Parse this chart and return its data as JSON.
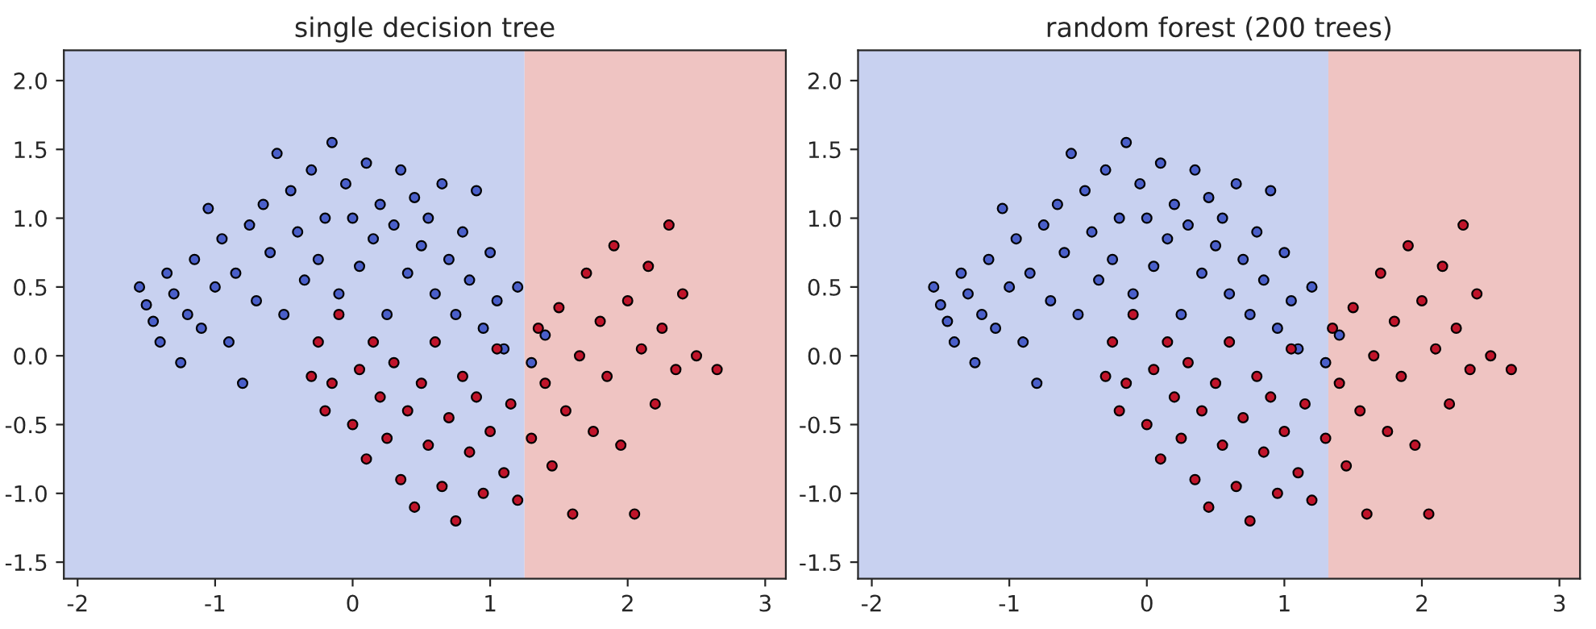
{
  "chart_data": [
    {
      "type": "scatter",
      "title": "single decision tree",
      "xlim": [
        -2.1,
        3.15
      ],
      "ylim": [
        -1.62,
        2.22
      ],
      "xticks": [
        -2,
        -1,
        0,
        1,
        2,
        3
      ],
      "yticks": [
        {
          "value": -1.5,
          "label": "-1.5"
        },
        {
          "value": -1,
          "label": "-1.0"
        },
        {
          "value": -0.5,
          "label": "-0.5"
        },
        {
          "value": 0,
          "label": "0.0"
        },
        {
          "value": 0.5,
          "label": "0.5"
        },
        {
          "value": 1,
          "label": "1.0"
        },
        {
          "value": 1.5,
          "label": "1.5"
        },
        {
          "value": 2,
          "label": "2.0"
        }
      ],
      "marker": "circle",
      "grid": false,
      "bands": [
        {
          "axis": "x",
          "from": -2.1,
          "to": 1.25,
          "color": "#c8d1f0"
        },
        {
          "axis": "x",
          "from": 1.25,
          "to": 3.15,
          "color": "#efc4c2"
        }
      ],
      "series": [
        {
          "color": "#4a5fc9",
          "x": [
            -1.55,
            -1.5,
            -1.45,
            -1.4,
            -1.35,
            -1.3,
            -1.25,
            -1.2,
            -1.15,
            -1.1,
            -1.05,
            -1.0,
            -0.95,
            -0.9,
            -0.85,
            -0.8,
            -0.75,
            -0.7,
            -0.65,
            -0.6,
            -0.55,
            -0.5,
            -0.45,
            -0.4,
            -0.35,
            -0.3,
            -0.25,
            -0.2,
            -0.15,
            -0.1,
            -0.05,
            0.0,
            0.05,
            0.1,
            0.15,
            0.2,
            0.25,
            0.3,
            0.35,
            0.4,
            0.45,
            0.5,
            0.55,
            0.6,
            0.65,
            0.7,
            0.75,
            0.8,
            0.85,
            0.9,
            0.95,
            1.0,
            1.05,
            1.1,
            1.2,
            1.3,
            1.4
          ],
          "values": [
            0.5,
            0.37,
            0.25,
            0.1,
            0.6,
            0.45,
            -0.05,
            0.3,
            0.7,
            0.2,
            1.07,
            0.5,
            0.85,
            0.1,
            0.6,
            -0.2,
            0.95,
            0.4,
            1.1,
            0.75,
            1.47,
            0.3,
            1.2,
            0.9,
            0.55,
            1.35,
            0.7,
            1.0,
            1.55,
            0.45,
            1.25,
            1.0,
            0.65,
            1.4,
            0.85,
            1.1,
            0.3,
            0.95,
            1.35,
            0.6,
            1.15,
            0.8,
            1.0,
            0.45,
            1.25,
            0.7,
            0.3,
            0.9,
            0.55,
            1.2,
            0.2,
            0.75,
            0.4,
            0.05,
            0.5,
            -0.05,
            0.15
          ]
        },
        {
          "color": "#c0142a",
          "x": [
            -0.3,
            -0.25,
            -0.2,
            -0.15,
            -0.1,
            0.0,
            0.05,
            0.1,
            0.15,
            0.2,
            0.25,
            0.3,
            0.35,
            0.4,
            0.45,
            0.5,
            0.55,
            0.6,
            0.65,
            0.7,
            0.75,
            0.8,
            0.85,
            0.9,
            0.95,
            1.0,
            1.05,
            1.1,
            1.15,
            1.2,
            1.3,
            1.35,
            1.4,
            1.45,
            1.5,
            1.55,
            1.6,
            1.65,
            1.7,
            1.75,
            1.8,
            1.85,
            1.9,
            1.95,
            2.0,
            2.05,
            2.1,
            2.15,
            2.2,
            2.25,
            2.3,
            2.35,
            2.4,
            2.5,
            2.65
          ],
          "values": [
            -0.15,
            0.1,
            -0.4,
            -0.2,
            0.3,
            -0.5,
            -0.1,
            -0.75,
            0.1,
            -0.3,
            -0.6,
            -0.05,
            -0.9,
            -0.4,
            -1.1,
            -0.2,
            -0.65,
            0.1,
            -0.95,
            -0.45,
            -1.2,
            -0.15,
            -0.7,
            -0.3,
            -1.0,
            -0.55,
            0.05,
            -0.85,
            -0.35,
            -1.05,
            -0.6,
            0.2,
            -0.2,
            -0.8,
            0.35,
            -0.4,
            -1.15,
            0.0,
            0.6,
            -0.55,
            0.25,
            -0.15,
            0.8,
            -0.65,
            0.4,
            -1.15,
            0.05,
            0.65,
            -0.35,
            0.2,
            0.95,
            -0.1,
            0.45,
            0.0,
            -0.1
          ]
        }
      ]
    },
    {
      "type": "scatter",
      "title": "random forest (200 trees)",
      "xlim": [
        -2.1,
        3.15
      ],
      "ylim": [
        -1.62,
        2.22
      ],
      "xticks": [
        -2,
        -1,
        0,
        1,
        2,
        3
      ],
      "yticks": [
        {
          "value": -1.5,
          "label": "-1.5"
        },
        {
          "value": -1,
          "label": "-1.0"
        },
        {
          "value": -0.5,
          "label": "-0.5"
        },
        {
          "value": 0,
          "label": "0.0"
        },
        {
          "value": 0.5,
          "label": "0.5"
        },
        {
          "value": 1,
          "label": "1.0"
        },
        {
          "value": 1.5,
          "label": "1.5"
        },
        {
          "value": 2,
          "label": "2.0"
        }
      ],
      "marker": "circle",
      "grid": false,
      "bands": [
        {
          "axis": "x",
          "from": -2.1,
          "to": 1.32,
          "color": "#c8d1f0"
        },
        {
          "axis": "x",
          "from": 1.32,
          "to": 3.15,
          "color": "#efc4c2"
        }
      ],
      "series": [
        {
          "color": "#4a5fc9",
          "x": [
            -1.55,
            -1.5,
            -1.45,
            -1.4,
            -1.35,
            -1.3,
            -1.25,
            -1.2,
            -1.15,
            -1.1,
            -1.05,
            -1.0,
            -0.95,
            -0.9,
            -0.85,
            -0.8,
            -0.75,
            -0.7,
            -0.65,
            -0.6,
            -0.55,
            -0.5,
            -0.45,
            -0.4,
            -0.35,
            -0.3,
            -0.25,
            -0.2,
            -0.15,
            -0.1,
            -0.05,
            0.0,
            0.05,
            0.1,
            0.15,
            0.2,
            0.25,
            0.3,
            0.35,
            0.4,
            0.45,
            0.5,
            0.55,
            0.6,
            0.65,
            0.7,
            0.75,
            0.8,
            0.85,
            0.9,
            0.95,
            1.0,
            1.05,
            1.1,
            1.2,
            1.3,
            1.4
          ],
          "values": [
            0.5,
            0.37,
            0.25,
            0.1,
            0.6,
            0.45,
            -0.05,
            0.3,
            0.7,
            0.2,
            1.07,
            0.5,
            0.85,
            0.1,
            0.6,
            -0.2,
            0.95,
            0.4,
            1.1,
            0.75,
            1.47,
            0.3,
            1.2,
            0.9,
            0.55,
            1.35,
            0.7,
            1.0,
            1.55,
            0.45,
            1.25,
            1.0,
            0.65,
            1.4,
            0.85,
            1.1,
            0.3,
            0.95,
            1.35,
            0.6,
            1.15,
            0.8,
            1.0,
            0.45,
            1.25,
            0.7,
            0.3,
            0.9,
            0.55,
            1.2,
            0.2,
            0.75,
            0.4,
            0.05,
            0.5,
            -0.05,
            0.15
          ]
        },
        {
          "color": "#c0142a",
          "x": [
            -0.3,
            -0.25,
            -0.2,
            -0.15,
            -0.1,
            0.0,
            0.05,
            0.1,
            0.15,
            0.2,
            0.25,
            0.3,
            0.35,
            0.4,
            0.45,
            0.5,
            0.55,
            0.6,
            0.65,
            0.7,
            0.75,
            0.8,
            0.85,
            0.9,
            0.95,
            1.0,
            1.05,
            1.1,
            1.15,
            1.2,
            1.3,
            1.35,
            1.4,
            1.45,
            1.5,
            1.55,
            1.6,
            1.65,
            1.7,
            1.75,
            1.8,
            1.85,
            1.9,
            1.95,
            2.0,
            2.05,
            2.1,
            2.15,
            2.2,
            2.25,
            2.3,
            2.35,
            2.4,
            2.5,
            2.65
          ],
          "values": [
            -0.15,
            0.1,
            -0.4,
            -0.2,
            0.3,
            -0.5,
            -0.1,
            -0.75,
            0.1,
            -0.3,
            -0.6,
            -0.05,
            -0.9,
            -0.4,
            -1.1,
            -0.2,
            -0.65,
            0.1,
            -0.95,
            -0.45,
            -1.2,
            -0.15,
            -0.7,
            -0.3,
            -1.0,
            -0.55,
            0.05,
            -0.85,
            -0.35,
            -1.05,
            -0.6,
            0.2,
            -0.2,
            -0.8,
            0.35,
            -0.4,
            -1.15,
            0.0,
            0.6,
            -0.55,
            0.25,
            -0.15,
            0.8,
            -0.65,
            0.4,
            -1.15,
            0.05,
            0.65,
            -0.35,
            0.2,
            0.95,
            -0.1,
            0.45,
            0.0,
            -0.1
          ]
        }
      ]
    }
  ]
}
